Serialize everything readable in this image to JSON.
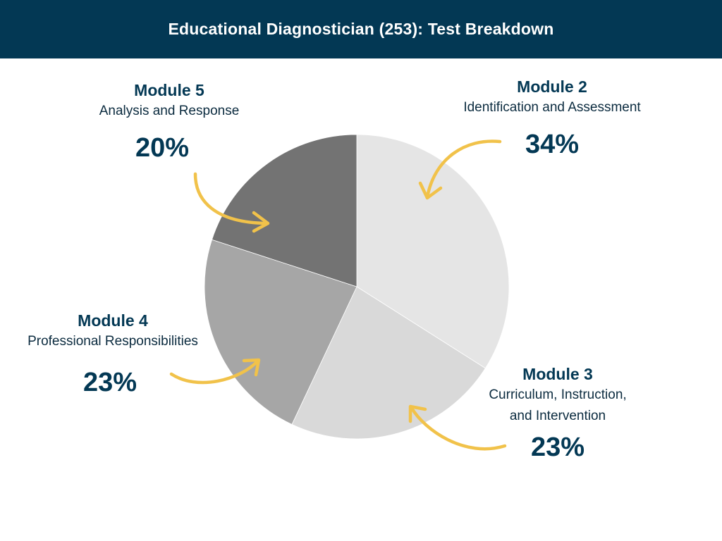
{
  "title": "Educational Diagnostician (253): Test Breakdown",
  "colors": {
    "header_bg": "#033854",
    "text_dark": "#033854",
    "arrow": "#F1C24A",
    "slices": [
      "#E5E5E5",
      "#D9D9D9",
      "#A6A6A6",
      "#737373"
    ]
  },
  "chart_data": {
    "type": "pie",
    "title": "Educational Diagnostician (253): Test Breakdown",
    "start": "12 o'clock",
    "direction": "clockwise",
    "slices": [
      {
        "module": "Module 2",
        "description": "Identification and Assessment",
        "value": 34,
        "label": "34%"
      },
      {
        "module": "Module 3",
        "description_lines": [
          "Curriculum, Instruction,",
          "and Intervention"
        ],
        "value": 23,
        "label": "23%"
      },
      {
        "module": "Module 4",
        "description": "Professional Responsibilities",
        "value": 23,
        "label": "23%"
      },
      {
        "module": "Module 5",
        "description": "Analysis and Response",
        "value": 20,
        "label": "20%"
      }
    ]
  }
}
